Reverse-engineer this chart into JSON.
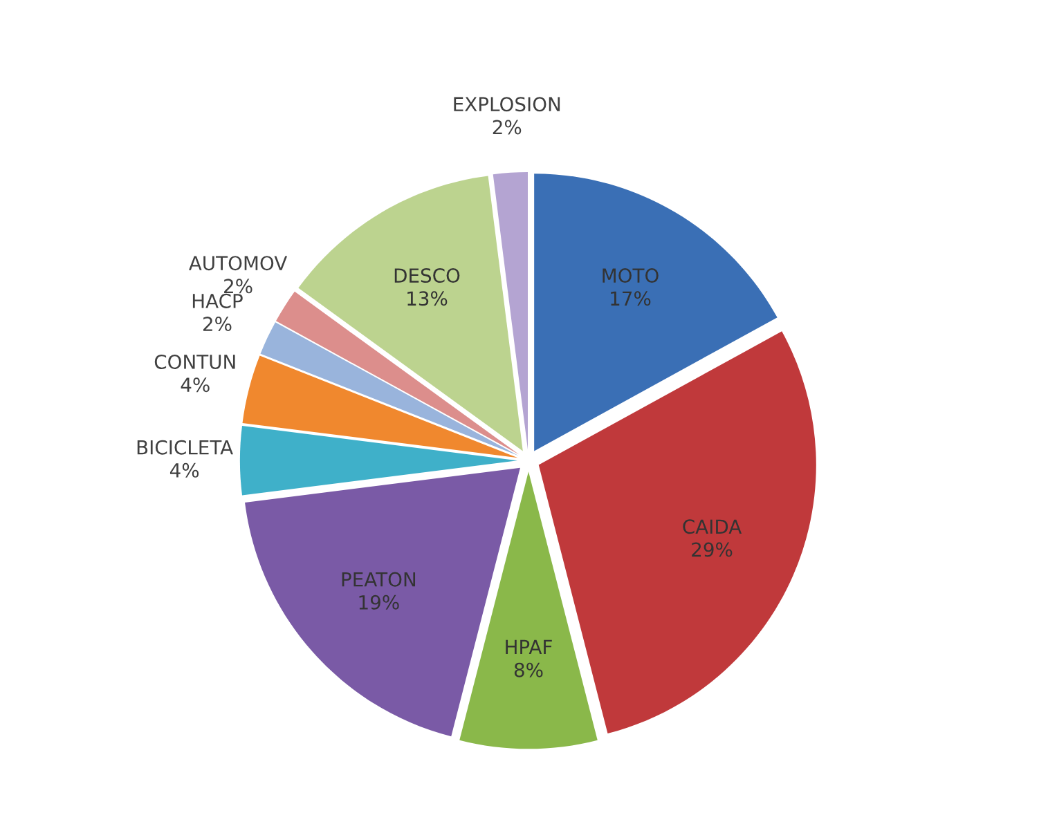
{
  "chart_data": {
    "type": "pie",
    "categories": [
      "MOTO",
      "CAIDA",
      "HPAF",
      "PEATON",
      "BICICLETA",
      "CONTUN",
      "HACP",
      "AUTOMOV",
      "DESCO",
      "EXPLOSION"
    ],
    "values": [
      17,
      29,
      8,
      19,
      4,
      4,
      2,
      2,
      13,
      2
    ],
    "value_labels": [
      "17%",
      "29%",
      "8%",
      "19%",
      "4%",
      "4%",
      "2%",
      "2%",
      "13%",
      "2%"
    ],
    "colors": [
      "#3a6fb5",
      "#c0393b",
      "#8ab84a",
      "#7a5aa6",
      "#3fb0c9",
      "#f0882e",
      "#99b4dc",
      "#dc8e8c",
      "#bcd38f",
      "#b4a4d2"
    ],
    "legend": false
  }
}
